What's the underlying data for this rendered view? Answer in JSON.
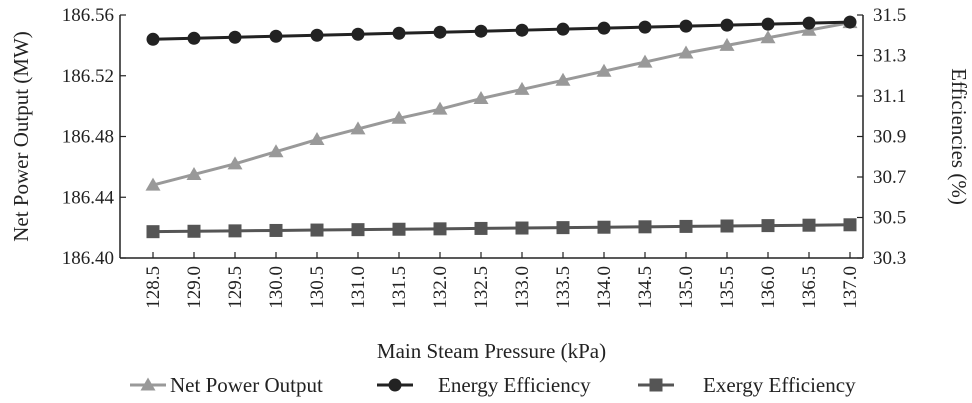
{
  "chart_data": {
    "type": "line",
    "xlabel": "Main Steam Pressure (kPa)",
    "ylabel_left": "Net Power Output (MW)",
    "ylabel_right": "Efficiencies (%)",
    "x": [
      "128.5",
      "129.0",
      "129.5",
      "130.0",
      "130.5",
      "131.0",
      "131.5",
      "132.0",
      "132.5",
      "133.0",
      "133.5",
      "134.0",
      "134.5",
      "135.0",
      "135.5",
      "136.0",
      "136.5",
      "137.0"
    ],
    "left_axis": {
      "min": 186.4,
      "max": 186.56,
      "ticks": [
        "186.40",
        "186.44",
        "186.48",
        "186.52",
        "186.56"
      ]
    },
    "right_axis": {
      "min": 30.3,
      "max": 31.5,
      "ticks": [
        "30.3",
        "30.5",
        "30.7",
        "30.9",
        "31.1",
        "31.3",
        "31.5"
      ]
    },
    "series": [
      {
        "name": "Net Power Output",
        "axis": "left",
        "color": "#999999",
        "marker": "triangle",
        "values": [
          186.448,
          186.455,
          186.462,
          186.47,
          186.478,
          186.485,
          186.492,
          186.498,
          186.505,
          186.511,
          186.517,
          186.523,
          186.529,
          186.535,
          186.54,
          186.545,
          186.55,
          186.555
        ]
      },
      {
        "name": "Energy Efficiency",
        "axis": "right",
        "color": "#222222",
        "marker": "circle",
        "values": [
          31.38,
          31.385,
          31.39,
          31.395,
          31.4,
          31.405,
          31.41,
          31.415,
          31.42,
          31.425,
          31.43,
          31.435,
          31.44,
          31.445,
          31.45,
          31.455,
          31.46,
          31.465
        ]
      },
      {
        "name": "Exergy Efficiency",
        "axis": "right",
        "color": "#555555",
        "marker": "square",
        "values": [
          30.43,
          30.432,
          30.434,
          30.436,
          30.438,
          30.44,
          30.442,
          30.444,
          30.446,
          30.448,
          30.45,
          30.452,
          30.454,
          30.456,
          30.458,
          30.46,
          30.462,
          30.464
        ]
      }
    ],
    "grid": false,
    "legend_position": "bottom"
  }
}
